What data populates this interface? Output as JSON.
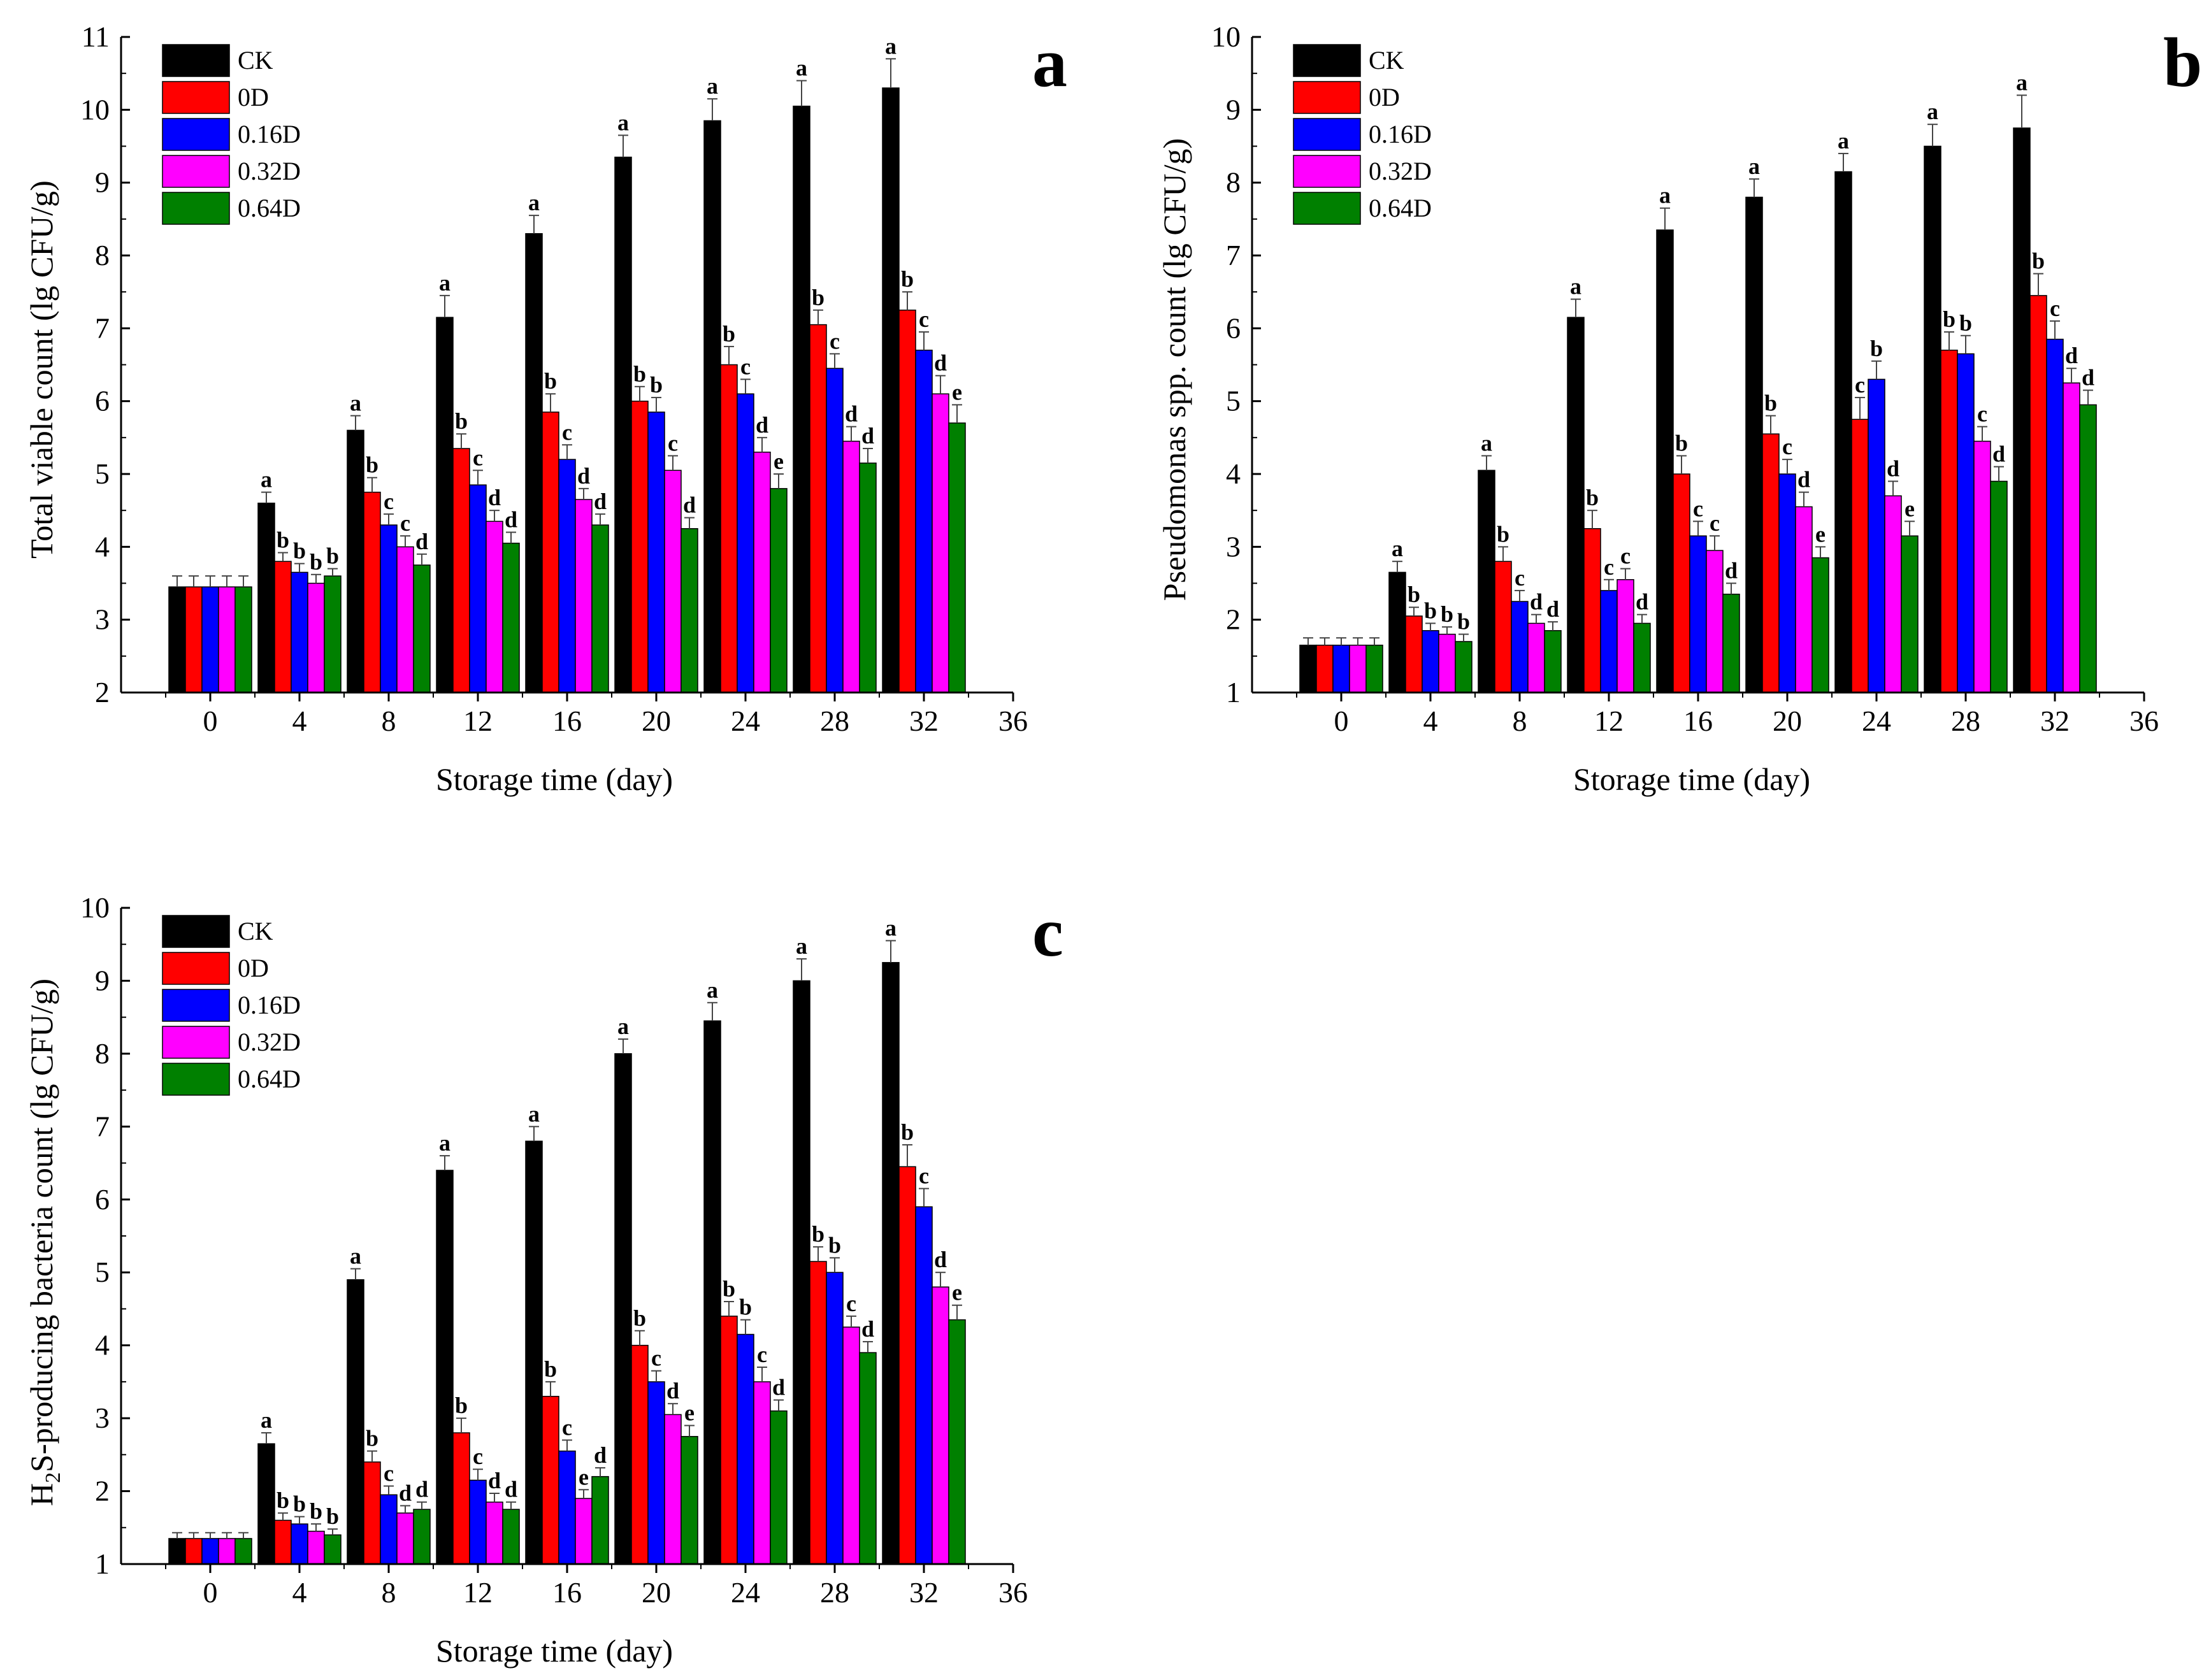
{
  "chart_data": [
    {
      "panel": "a",
      "type": "bar",
      "xlabel": "Storage time (day)",
      "ylabel": "Total viable count (lg CFU/g)",
      "ylim": [
        2,
        11
      ],
      "yticks": [
        2,
        3,
        4,
        5,
        6,
        7,
        8,
        9,
        10,
        11
      ],
      "xlim": [
        -4,
        36
      ],
      "xticks": [
        0,
        4,
        8,
        12,
        16,
        20,
        24,
        28,
        32,
        36
      ],
      "categories": [
        0,
        4,
        8,
        12,
        16,
        20,
        24,
        28,
        32
      ],
      "legend_position": "top-left",
      "series": [
        {
          "name": "CK",
          "color": "#000000",
          "values": [
            3.45,
            4.6,
            5.6,
            7.15,
            8.3,
            9.35,
            9.85,
            10.05,
            10.3
          ],
          "errors": [
            0.15,
            0.15,
            0.2,
            0.3,
            0.25,
            0.3,
            0.3,
            0.35,
            0.4
          ],
          "letters": [
            "",
            "a",
            "a",
            "a",
            "a",
            "a",
            "a",
            "a",
            "a"
          ]
        },
        {
          "name": "0D",
          "color": "#ff0000",
          "values": [
            3.45,
            3.8,
            4.75,
            5.35,
            5.85,
            6.0,
            6.5,
            7.05,
            7.25
          ],
          "errors": [
            0.15,
            0.12,
            0.2,
            0.2,
            0.25,
            0.2,
            0.25,
            0.2,
            0.25
          ],
          "letters": [
            "",
            "b",
            "b",
            "b",
            "b",
            "b",
            "b",
            "b",
            "b"
          ]
        },
        {
          "name": "0.16D",
          "color": "#0000ff",
          "values": [
            3.45,
            3.65,
            4.3,
            4.85,
            5.2,
            5.85,
            6.1,
            6.45,
            6.7
          ],
          "errors": [
            0.15,
            0.12,
            0.15,
            0.2,
            0.2,
            0.2,
            0.2,
            0.2,
            0.25
          ],
          "letters": [
            "",
            "b",
            "c",
            "c",
            "c",
            "b",
            "c",
            "c",
            "c"
          ]
        },
        {
          "name": "0.32D",
          "color": "#ff00ff",
          "values": [
            3.45,
            3.5,
            4.0,
            4.35,
            4.65,
            5.05,
            5.3,
            5.45,
            6.1
          ],
          "errors": [
            0.15,
            0.12,
            0.15,
            0.15,
            0.15,
            0.2,
            0.2,
            0.2,
            0.25
          ],
          "letters": [
            "",
            "b",
            "c",
            "d",
            "d",
            "c",
            "d",
            "d",
            "d"
          ]
        },
        {
          "name": "0.64D",
          "color": "#008000",
          "values": [
            3.45,
            3.6,
            3.75,
            4.05,
            4.3,
            4.25,
            4.8,
            5.15,
            5.7
          ],
          "errors": [
            0.15,
            0.1,
            0.15,
            0.15,
            0.15,
            0.15,
            0.2,
            0.2,
            0.25
          ],
          "letters": [
            "",
            "b",
            "d",
            "d",
            "d",
            "d",
            "e",
            "d",
            "e"
          ]
        }
      ]
    },
    {
      "panel": "b",
      "type": "bar",
      "xlabel": "Storage time (day)",
      "ylabel": "Pseudomonas spp. count (lg CFU/g)",
      "ylim": [
        1,
        10
      ],
      "yticks": [
        1,
        2,
        3,
        4,
        5,
        6,
        7,
        8,
        9,
        10
      ],
      "xlim": [
        -4,
        36
      ],
      "xticks": [
        0,
        4,
        8,
        12,
        16,
        20,
        24,
        28,
        32,
        36
      ],
      "categories": [
        0,
        4,
        8,
        12,
        16,
        20,
        24,
        28,
        32
      ],
      "legend_position": "top-left",
      "series": [
        {
          "name": "CK",
          "color": "#000000",
          "values": [
            1.65,
            2.65,
            4.05,
            6.15,
            7.35,
            7.8,
            8.15,
            8.5,
            8.75
          ],
          "errors": [
            0.1,
            0.15,
            0.2,
            0.25,
            0.3,
            0.25,
            0.25,
            0.3,
            0.45
          ],
          "letters": [
            "",
            "a",
            "a",
            "a",
            "a",
            "a",
            "a",
            "a",
            "a"
          ]
        },
        {
          "name": "0D",
          "color": "#ff0000",
          "values": [
            1.65,
            2.05,
            2.8,
            3.25,
            4.0,
            4.55,
            4.75,
            5.7,
            6.45
          ],
          "errors": [
            0.1,
            0.12,
            0.2,
            0.25,
            0.25,
            0.25,
            0.3,
            0.25,
            0.3
          ],
          "letters": [
            "",
            "b",
            "b",
            "b",
            "b",
            "b",
            "c",
            "b",
            "b"
          ]
        },
        {
          "name": "0.16D",
          "color": "#0000ff",
          "values": [
            1.65,
            1.85,
            2.25,
            2.4,
            3.15,
            4.0,
            5.3,
            5.65,
            5.85
          ],
          "errors": [
            0.1,
            0.1,
            0.15,
            0.15,
            0.2,
            0.2,
            0.25,
            0.25,
            0.25
          ],
          "letters": [
            "",
            "b",
            "c",
            "c",
            "c",
            "c",
            "b",
            "b",
            "c"
          ]
        },
        {
          "name": "0.32D",
          "color": "#ff00ff",
          "values": [
            1.65,
            1.8,
            1.95,
            2.55,
            2.95,
            3.55,
            3.7,
            4.45,
            5.25
          ],
          "errors": [
            0.1,
            0.1,
            0.12,
            0.15,
            0.2,
            0.2,
            0.2,
            0.2,
            0.2
          ],
          "letters": [
            "",
            "b",
            "d",
            "c",
            "c",
            "d",
            "d",
            "c",
            "d"
          ]
        },
        {
          "name": "0.64D",
          "color": "#008000",
          "values": [
            1.65,
            1.7,
            1.85,
            1.95,
            2.35,
            2.85,
            3.15,
            3.9,
            4.95
          ],
          "errors": [
            0.1,
            0.1,
            0.12,
            0.12,
            0.15,
            0.15,
            0.2,
            0.2,
            0.2
          ],
          "letters": [
            "",
            "b",
            "d",
            "d",
            "d",
            "e",
            "e",
            "d",
            "d"
          ]
        }
      ]
    },
    {
      "panel": "c",
      "type": "bar",
      "xlabel": "Storage time (day)",
      "ylabel_prefix": "H",
      "ylabel_sub": "2",
      "ylabel_suffix": "S-producing bacteria count (lg CFU/g)",
      "ylim": [
        1,
        10
      ],
      "yticks": [
        1,
        2,
        3,
        4,
        5,
        6,
        7,
        8,
        9,
        10
      ],
      "xlim": [
        -4,
        36
      ],
      "xticks": [
        0,
        4,
        8,
        12,
        16,
        20,
        24,
        28,
        32,
        36
      ],
      "categories": [
        0,
        4,
        8,
        12,
        16,
        20,
        24,
        28,
        32
      ],
      "legend_position": "top-left",
      "series": [
        {
          "name": "CK",
          "color": "#000000",
          "values": [
            1.35,
            2.65,
            4.9,
            6.4,
            6.8,
            8.0,
            8.45,
            9.0,
            9.25
          ],
          "errors": [
            0.08,
            0.15,
            0.15,
            0.2,
            0.2,
            0.2,
            0.25,
            0.3,
            0.3
          ],
          "letters": [
            "",
            "a",
            "a",
            "a",
            "a",
            "a",
            "a",
            "a",
            "a"
          ]
        },
        {
          "name": "0D",
          "color": "#ff0000",
          "values": [
            1.35,
            1.6,
            2.4,
            2.8,
            3.3,
            4.0,
            4.4,
            5.15,
            6.45
          ],
          "errors": [
            0.08,
            0.1,
            0.15,
            0.2,
            0.2,
            0.2,
            0.2,
            0.2,
            0.3
          ],
          "letters": [
            "",
            "b",
            "b",
            "b",
            "b",
            "b",
            "b",
            "b",
            "b"
          ]
        },
        {
          "name": "0.16D",
          "color": "#0000ff",
          "values": [
            1.35,
            1.55,
            1.95,
            2.15,
            2.55,
            3.5,
            4.15,
            5.0,
            5.9
          ],
          "errors": [
            0.08,
            0.1,
            0.12,
            0.15,
            0.15,
            0.15,
            0.2,
            0.2,
            0.25
          ],
          "letters": [
            "",
            "b",
            "c",
            "c",
            "c",
            "c",
            "b",
            "b",
            "c"
          ]
        },
        {
          "name": "0.32D",
          "color": "#ff00ff",
          "values": [
            1.35,
            1.45,
            1.7,
            1.85,
            1.9,
            3.05,
            3.5,
            4.25,
            4.8
          ],
          "errors": [
            0.08,
            0.1,
            0.1,
            0.12,
            0.12,
            0.15,
            0.2,
            0.15,
            0.2
          ],
          "letters": [
            "",
            "b",
            "d",
            "d",
            "e",
            "d",
            "c",
            "c",
            "d"
          ]
        },
        {
          "name": "0.64D",
          "color": "#008000",
          "values": [
            1.35,
            1.4,
            1.75,
            1.75,
            2.2,
            2.75,
            3.1,
            3.9,
            4.35
          ],
          "errors": [
            0.08,
            0.08,
            0.1,
            0.1,
            0.12,
            0.15,
            0.15,
            0.15,
            0.2
          ],
          "letters": [
            "",
            "b",
            "d",
            "d",
            "d",
            "e",
            "d",
            "d",
            "e"
          ]
        }
      ]
    }
  ]
}
